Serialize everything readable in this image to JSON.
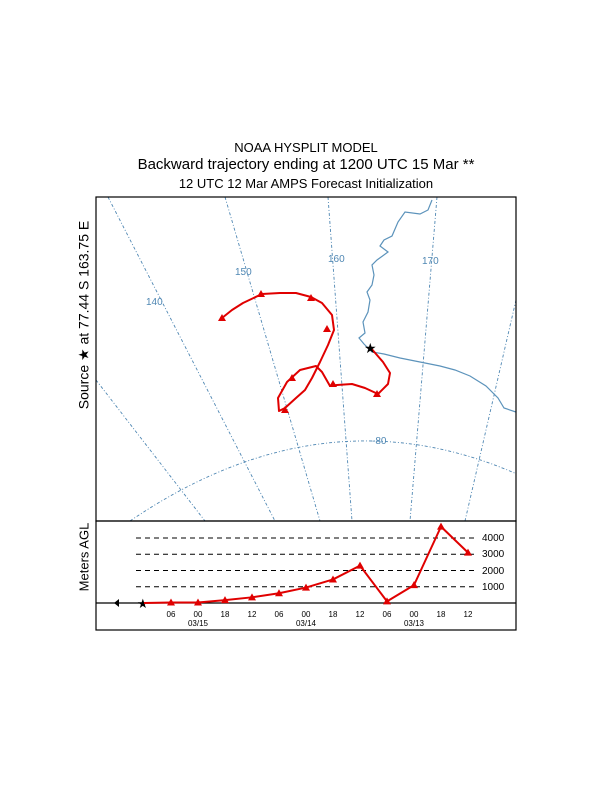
{
  "header": {
    "line1": "NOAA HYSPLIT MODEL",
    "line2": "Backward trajectory ending at 1200 UTC 15 Mar **",
    "line3": "12 UTC 12 Mar    AMPS  Forecast Initialization"
  },
  "map": {
    "ylabel": "Source ★ at   77.44 S  163.75 E",
    "meridian_labels": [
      "140",
      "150",
      "160",
      "170"
    ],
    "parallel_labels": [
      "-80"
    ],
    "colors": {
      "grid": "#4f87b3",
      "coast": "#5c93bb",
      "trajectory": "#e00000"
    }
  },
  "altitude": {
    "ylabel": "Meters AGL",
    "ref_levels": [
      1000,
      2000,
      3000,
      4000
    ],
    "ref_labels": [
      "1000",
      "2000",
      "3000",
      "4000"
    ],
    "hour_ticks": [
      "06",
      "00",
      "18",
      "12",
      "06",
      "00",
      "18",
      "12",
      "06",
      "00",
      "18",
      "12"
    ],
    "date_labels": [
      "03/15",
      "03/14",
      "03/13"
    ]
  },
  "chart_data": {
    "type": "line",
    "title": "Backward trajectory ending at 1200 UTC 15 Mar **",
    "series": [
      {
        "x": [
          "03/15 12",
          "03/15 06",
          "03/15 00",
          "03/14 18",
          "03/14 12",
          "03/14 06",
          "03/14 00",
          "03/13 18",
          "03/13 12",
          "03/13 06",
          "03/13 00",
          "03/12 18",
          "03/12 12"
        ],
        "values": [
          0,
          30,
          30,
          180,
          350,
          600,
          950,
          1450,
          2300,
          100,
          1100,
          4700,
          3100
        ]
      }
    ],
    "ylabel": "Meters AGL",
    "source": {
      "lat": "77.44 S",
      "lon": "163.75 E"
    }
  }
}
